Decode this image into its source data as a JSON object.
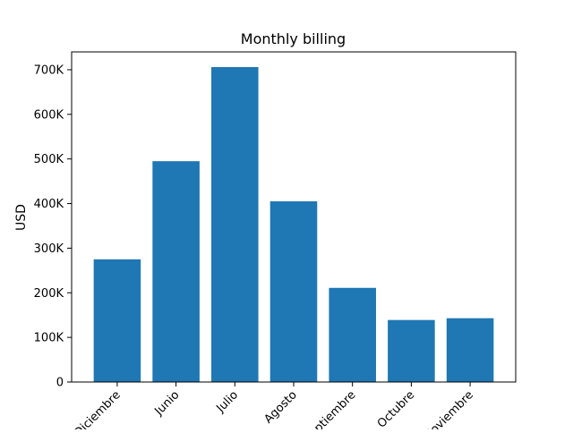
{
  "chart_data": {
    "type": "bar",
    "title": "Monthly billing",
    "xlabel": "",
    "ylabel": "USD",
    "categories": [
      "Diciembre",
      "Junio",
      "Julio",
      "Agosto",
      "Septiembre",
      "Octubre",
      "Noviembre"
    ],
    "values": [
      275000,
      495000,
      706000,
      405000,
      211000,
      139000,
      143000
    ],
    "ylim": [
      0,
      740000
    ],
    "yticks": [
      0,
      100000,
      200000,
      300000,
      400000,
      500000,
      600000,
      700000
    ],
    "ytick_labels": [
      "0",
      "100K",
      "200K",
      "300K",
      "400K",
      "500K",
      "600K",
      "700K"
    ],
    "bar_color": "#1f77b4",
    "grid": false
  }
}
